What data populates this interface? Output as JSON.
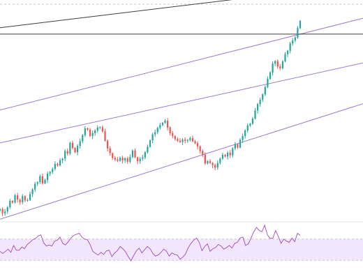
{
  "colors": {
    "background": "#ffffff",
    "up_candle": "#26a69a",
    "down_candle": "#ef5350",
    "channel_lines": "#9c7bd6",
    "trend_line": "#3d3d3d",
    "horizontal_line": "#3d3d3d",
    "rsi_line": "#a14ab8",
    "rsi_band_fill": "#f1e6fb",
    "dashed_border": "#c8c8c8"
  },
  "chart_data": [
    {
      "type": "candlestick",
      "title": "",
      "xlabel": "",
      "ylabel": "",
      "grid": false,
      "legend": "none",
      "close_series": [
        150,
        140,
        144,
        154,
        169,
        165,
        182,
        172,
        166,
        180,
        170,
        171,
        185,
        196,
        209,
        213,
        227,
        210,
        218,
        233,
        237,
        244,
        256,
        252,
        264,
        268,
        286,
        280,
        305,
        293,
        283,
        298,
        309,
        323,
        339,
        336,
        321,
        328,
        334,
        341,
        342,
        332,
        310,
        292,
        281,
        270,
        266,
        263,
        270,
        264,
        269,
        261,
        272,
        287,
        271,
        262,
        268,
        271,
        283,
        296,
        311,
        325,
        330,
        340,
        347,
        352,
        357,
        341,
        328,
        321,
        314,
        310,
        307,
        313,
        310,
        312,
        316,
        309,
        304,
        297,
        286,
        277,
        257,
        262,
        258,
        253,
        247,
        258,
        268,
        277,
        273,
        282,
        276,
        292,
        302,
        294,
        312,
        321,
        334,
        346,
        350,
        362,
        381,
        396,
        406,
        419,
        436,
        455,
        470,
        491,
        497,
        484,
        480,
        496,
        513,
        521,
        538,
        545,
        552,
        574,
        591
      ],
      "price_range": [
        120,
        640
      ],
      "channel": {
        "upper": [
          [
            0,
            382
          ],
          [
            120,
            560
          ]
        ],
        "middle": [
          [
            0,
            305
          ],
          [
            120,
            460
          ]
        ],
        "lower": [
          [
            0,
            126
          ],
          [
            120,
            350
          ]
        ]
      },
      "trend_line": [
        [
          0,
          575
        ],
        [
          120,
          660
        ]
      ],
      "horizontal_level": 560
    },
    {
      "type": "line",
      "title": "",
      "xlabel": "",
      "ylabel": "",
      "grid": false,
      "legend": "none",
      "series": [
        {
          "values": [
            47,
            43,
            47,
            51,
            45,
            58,
            49,
            49,
            55,
            52,
            60,
            64,
            69,
            71,
            76,
            78,
            63,
            57,
            59,
            57,
            66,
            68,
            74,
            62,
            59,
            65,
            72,
            77,
            79,
            81,
            74,
            70,
            69,
            60,
            47,
            43,
            40,
            45,
            41,
            48,
            49,
            37,
            44,
            48,
            56,
            52,
            46,
            37,
            29,
            39,
            48,
            53,
            44,
            50,
            56,
            52,
            43,
            38,
            40,
            45,
            51,
            47,
            38,
            44,
            41,
            40,
            32,
            36,
            42,
            54,
            62,
            68,
            72,
            64,
            48,
            56,
            61,
            47,
            52,
            54,
            60,
            57,
            51,
            54,
            58,
            53,
            62,
            64,
            72,
            74,
            58,
            61,
            72,
            84,
            92,
            86,
            84,
            96,
            78,
            71,
            72,
            86,
            75,
            62,
            70,
            66,
            64,
            72,
            65,
            81,
            77
          ]
        }
      ],
      "ylim": [
        0,
        100
      ],
      "band": [
        30,
        70
      ]
    }
  ]
}
